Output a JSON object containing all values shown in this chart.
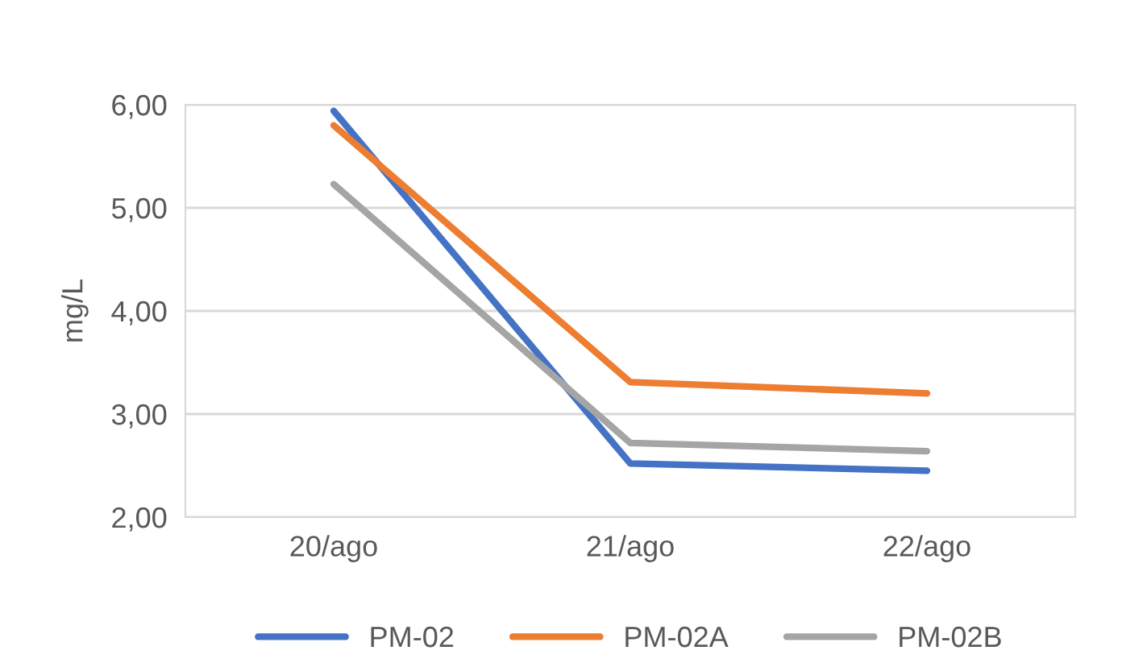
{
  "chart_data": {
    "type": "line",
    "ylabel": "mg/L",
    "categories": [
      "20/ago",
      "21/ago",
      "22/ago"
    ],
    "series": [
      {
        "name": "PM-02",
        "color": "#4472c4",
        "values": [
          5.94,
          2.52,
          2.45
        ]
      },
      {
        "name": "PM-02A",
        "color": "#ed7d31",
        "values": [
          5.8,
          3.31,
          3.2
        ]
      },
      {
        "name": "PM-02B",
        "color": "#a5a5a5",
        "values": [
          5.23,
          2.72,
          2.64
        ]
      }
    ],
    "ylim": [
      2,
      6
    ],
    "yticks": [
      {
        "value": 2,
        "label": "2,00"
      },
      {
        "value": 3,
        "label": "3,00"
      },
      {
        "value": 4,
        "label": "4,00"
      },
      {
        "value": 5,
        "label": "5,00"
      },
      {
        "value": 6,
        "label": "6,00"
      }
    ],
    "grid": "y",
    "legend": "bottom",
    "marker": "none",
    "line_style": "solid"
  }
}
